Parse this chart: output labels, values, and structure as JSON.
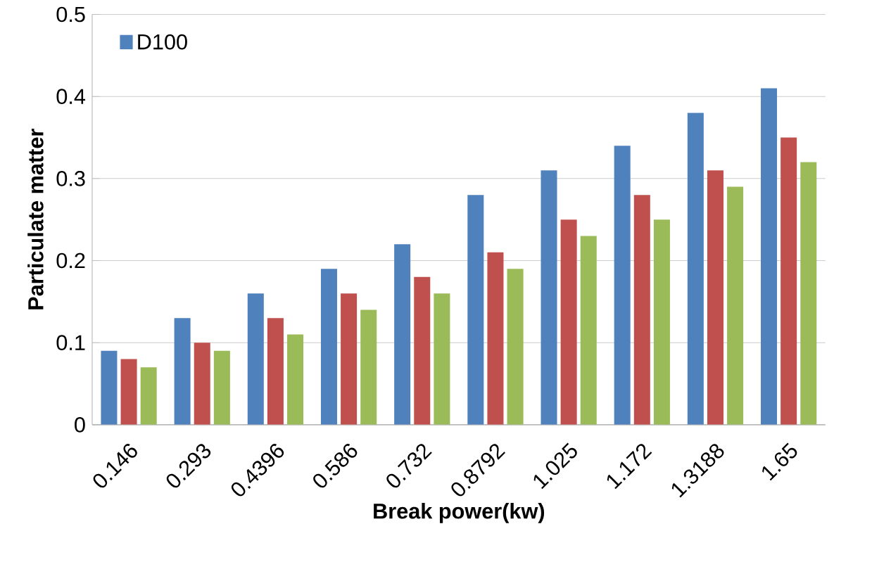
{
  "chart_data": {
    "type": "bar",
    "xlabel": "Break power(kw)",
    "ylabel": "Particulate matter",
    "categories": [
      "0.146",
      "0.293",
      "0.4396",
      "0.586",
      "0.732",
      "0.8792",
      "1.025",
      "1.172",
      "1.3188",
      "1.65"
    ],
    "series": [
      {
        "name": "D100",
        "color": "#4f81bd",
        "values": [
          0.09,
          0.13,
          0.16,
          0.19,
          0.22,
          0.28,
          0.31,
          0.34,
          0.38,
          0.41
        ]
      },
      {
        "color": "#c0504d",
        "values": [
          0.08,
          0.1,
          0.13,
          0.16,
          0.18,
          0.21,
          0.25,
          0.28,
          0.31,
          0.35
        ]
      },
      {
        "color": "#9bbb59",
        "values": [
          0.07,
          0.09,
          0.11,
          0.14,
          0.16,
          0.19,
          0.23,
          0.25,
          0.29,
          0.32
        ]
      }
    ],
    "ylim": [
      0,
      0.5
    ],
    "yticks": [
      0,
      0.1,
      0.2,
      0.3,
      0.4,
      0.5
    ],
    "grid": "y",
    "legend": "top left"
  }
}
